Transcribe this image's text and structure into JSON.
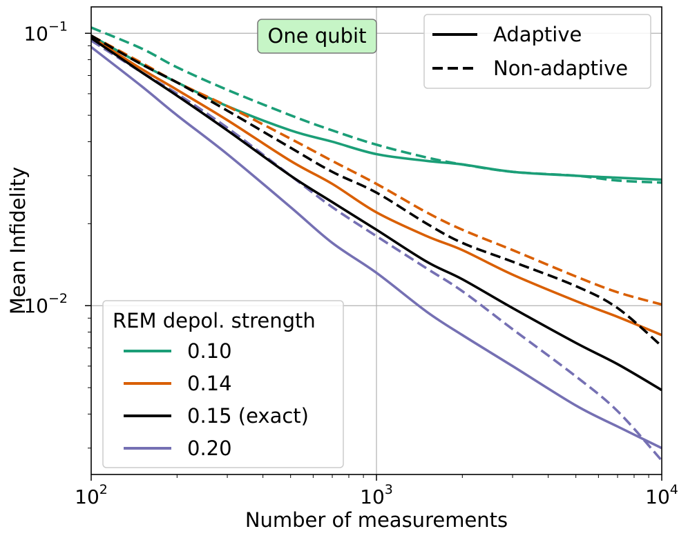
{
  "chart_data": {
    "type": "line",
    "title": "",
    "annotation": "One qubit",
    "annotation_color": "#c6f5c6",
    "xlabel": "Number of measurements",
    "ylabel": "Mean Infidelity",
    "xscale": "log",
    "yscale": "log",
    "xlim": [
      100,
      10000
    ],
    "ylim": [
      0.0024,
      0.125
    ],
    "x_ticks": [
      {
        "value": 100,
        "base": "10",
        "exp": "2"
      },
      {
        "value": 1000,
        "base": "10",
        "exp": "3"
      },
      {
        "value": 10000,
        "base": "10",
        "exp": "4"
      }
    ],
    "y_ticks": [
      {
        "value": 0.1,
        "base": "10",
        "exp": "−1"
      },
      {
        "value": 0.01,
        "base": "10",
        "exp": "−2"
      }
    ],
    "grid": true,
    "style_legend": {
      "placement": "top-right",
      "entries": [
        {
          "label": "Adaptive",
          "dash": "solid"
        },
        {
          "label": "Non-adaptive",
          "dash": "dashed"
        }
      ]
    },
    "color_legend": {
      "placement": "lower-left",
      "title": "REM depol. strength",
      "entries": [
        {
          "label": "0.10",
          "color": "#1b9e77"
        },
        {
          "label": "0.14",
          "color": "#d95f02"
        },
        {
          "label": "0.15 (exact)",
          "color": "#000000"
        },
        {
          "label": "0.20",
          "color": "#7570b3"
        }
      ]
    },
    "series": [
      {
        "group": "0.10",
        "mode": "Adaptive",
        "color": "#1b9e77",
        "dash": "solid",
        "x": [
          100,
          150,
          200,
          300,
          500,
          700,
          1000,
          1500,
          2000,
          3000,
          5000,
          7000,
          10000
        ],
        "y": [
          0.098,
          0.077,
          0.066,
          0.054,
          0.044,
          0.04,
          0.036,
          0.034,
          0.033,
          0.031,
          0.03,
          0.0295,
          0.029
        ]
      },
      {
        "group": "0.10",
        "mode": "Non-adaptive",
        "color": "#1b9e77",
        "dash": "dashed",
        "x": [
          100,
          150,
          200,
          300,
          500,
          700,
          1000,
          1500,
          2000,
          3000,
          5000,
          7000,
          10000
        ],
        "y": [
          0.105,
          0.088,
          0.075,
          0.062,
          0.05,
          0.044,
          0.039,
          0.035,
          0.033,
          0.031,
          0.03,
          0.0288,
          0.0283
        ]
      },
      {
        "group": "0.14",
        "mode": "Adaptive",
        "color": "#d95f02",
        "dash": "solid",
        "x": [
          100,
          150,
          200,
          300,
          500,
          700,
          1000,
          1500,
          2000,
          3000,
          5000,
          7000,
          10000
        ],
        "y": [
          0.097,
          0.074,
          0.062,
          0.048,
          0.034,
          0.028,
          0.022,
          0.018,
          0.016,
          0.013,
          0.0104,
          0.0091,
          0.0078
        ]
      },
      {
        "group": "0.14",
        "mode": "Non-adaptive",
        "color": "#d95f02",
        "dash": "dashed",
        "x": [
          100,
          150,
          200,
          300,
          500,
          700,
          1000,
          1500,
          2000,
          3000,
          5000,
          7000,
          10000
        ],
        "y": [
          0.098,
          0.078,
          0.066,
          0.054,
          0.041,
          0.034,
          0.028,
          0.022,
          0.019,
          0.016,
          0.0128,
          0.0112,
          0.0101
        ]
      },
      {
        "group": "0.15 (exact)",
        "mode": "Adaptive",
        "color": "#000000",
        "dash": "solid",
        "x": [
          100,
          150,
          200,
          300,
          500,
          700,
          1000,
          1500,
          2000,
          3000,
          5000,
          7000,
          10000
        ],
        "y": [
          0.096,
          0.072,
          0.059,
          0.044,
          0.03,
          0.024,
          0.019,
          0.0145,
          0.0125,
          0.0098,
          0.0073,
          0.0061,
          0.0049
        ]
      },
      {
        "group": "0.15 (exact)",
        "mode": "Non-adaptive",
        "color": "#000000",
        "dash": "dashed",
        "x": [
          100,
          150,
          200,
          300,
          500,
          700,
          1000,
          1500,
          2000,
          3000,
          5000,
          7000,
          10000
        ],
        "y": [
          0.098,
          0.077,
          0.066,
          0.052,
          0.038,
          0.031,
          0.026,
          0.02,
          0.017,
          0.0145,
          0.0118,
          0.0098,
          0.0071
        ]
      },
      {
        "group": "0.20",
        "mode": "Adaptive",
        "color": "#7570b3",
        "dash": "solid",
        "x": [
          100,
          150,
          200,
          300,
          500,
          700,
          1000,
          1500,
          2000,
          3000,
          5000,
          7000,
          10000
        ],
        "y": [
          0.089,
          0.064,
          0.05,
          0.036,
          0.023,
          0.017,
          0.0132,
          0.0095,
          0.0078,
          0.006,
          0.0043,
          0.0036,
          0.003
        ]
      },
      {
        "group": "0.20",
        "mode": "Non-adaptive",
        "color": "#7570b3",
        "dash": "dashed",
        "x": [
          100,
          150,
          200,
          300,
          500,
          700,
          1000,
          1500,
          2000,
          3000,
          5000,
          7000,
          10000
        ],
        "y": [
          0.094,
          0.072,
          0.06,
          0.045,
          0.03,
          0.023,
          0.018,
          0.0137,
          0.0113,
          0.0082,
          0.0055,
          0.0041,
          0.0027
        ]
      }
    ]
  }
}
